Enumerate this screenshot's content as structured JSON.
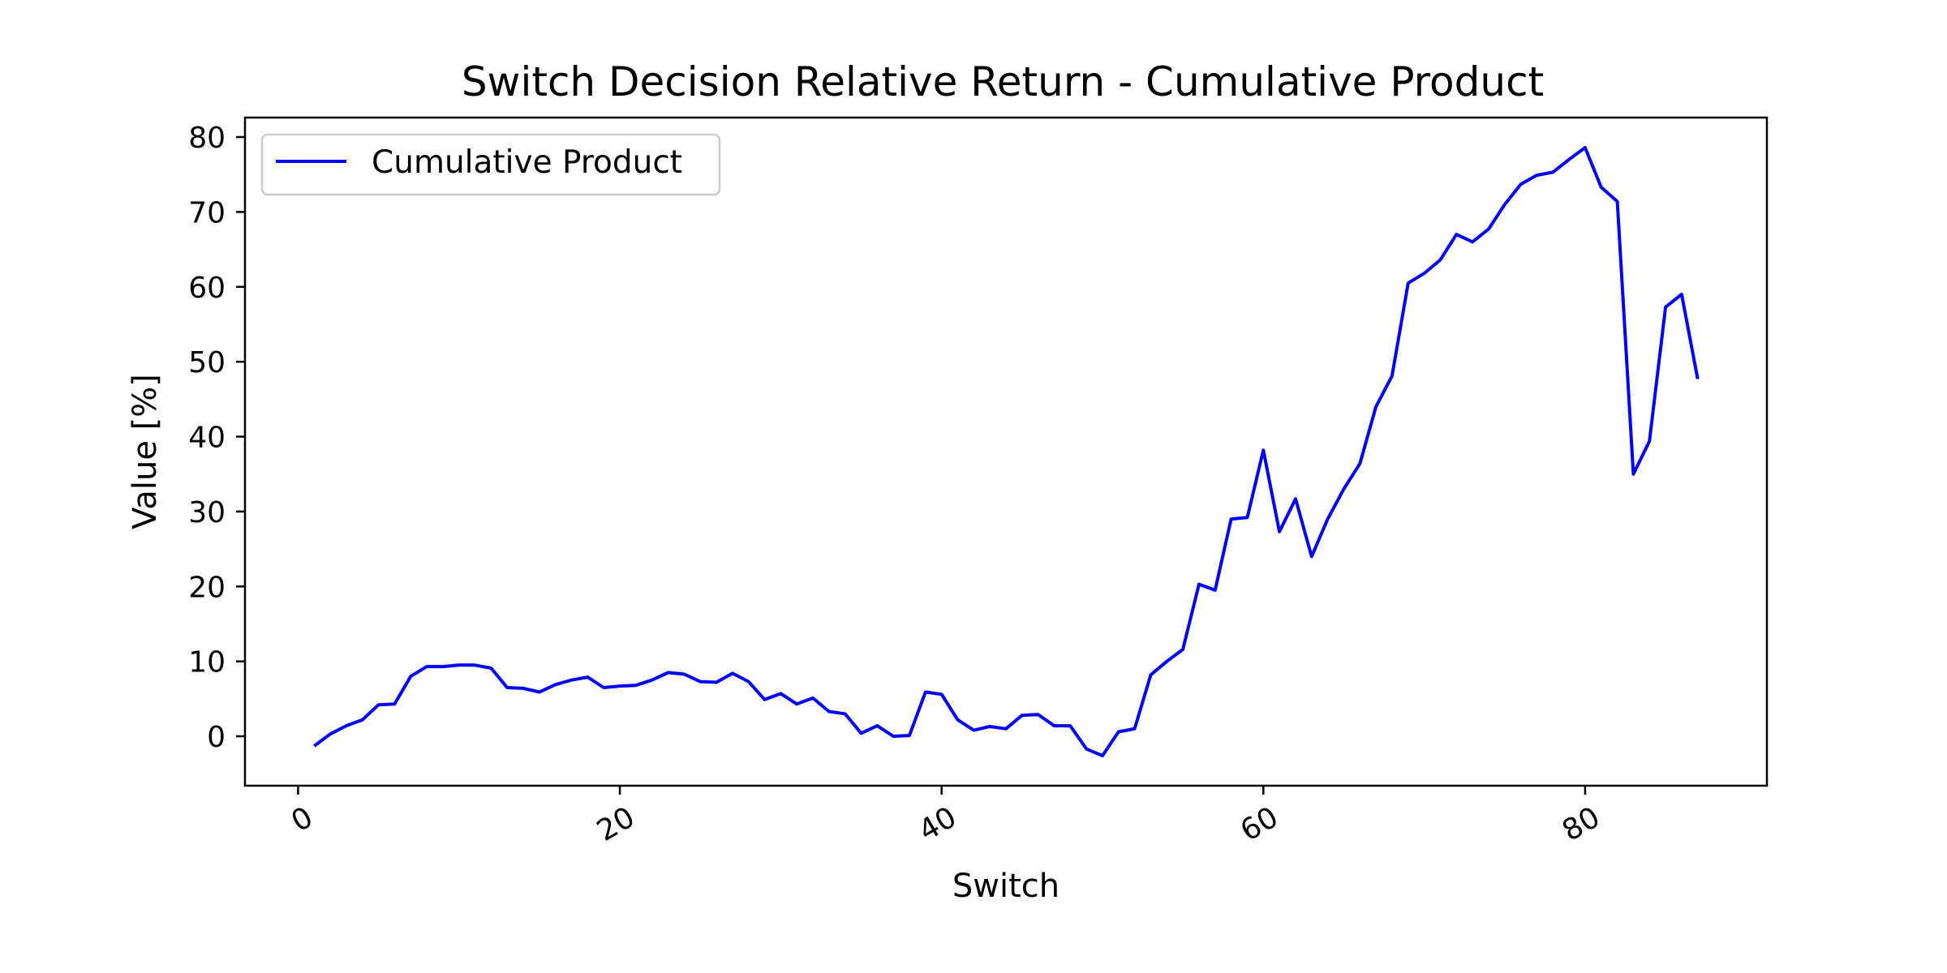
{
  "chart_data": {
    "type": "line",
    "title": "Switch Decision Relative Return - Cumulative Product",
    "xlabel": "Switch",
    "ylabel": "Value [%]",
    "xlim": [
      -3.3,
      91.3
    ],
    "ylim": [
      -6.6,
      82.6
    ],
    "xticks": [
      0,
      20,
      40,
      60,
      80
    ],
    "yticks": [
      0,
      10,
      20,
      30,
      40,
      50,
      60,
      70,
      80
    ],
    "grid": false,
    "legend_position": "top-left",
    "series": [
      {
        "name": "Cumulative Product",
        "color": "#0000ff",
        "x": [
          1,
          2,
          3,
          4,
          5,
          6,
          7,
          8,
          9,
          10,
          11,
          12,
          13,
          14,
          15,
          16,
          17,
          18,
          19,
          20,
          21,
          22,
          23,
          24,
          25,
          26,
          27,
          28,
          29,
          30,
          31,
          32,
          33,
          34,
          35,
          36,
          37,
          38,
          39,
          40,
          41,
          42,
          43,
          44,
          45,
          46,
          47,
          48,
          49,
          50,
          51,
          52,
          53,
          54,
          55,
          56,
          57,
          58,
          59,
          60,
          61,
          62,
          63,
          64,
          65,
          66,
          67,
          68,
          69,
          70,
          71,
          72,
          73,
          74,
          75,
          76,
          77,
          78,
          79,
          80,
          81,
          82,
          83,
          84,
          85,
          86,
          87
        ],
        "y": [
          -1.3,
          0.3,
          1.4,
          2.2,
          4.2,
          4.3,
          8.0,
          9.3,
          9.3,
          9.5,
          9.5,
          9.1,
          6.5,
          6.4,
          5.9,
          6.9,
          7.5,
          7.9,
          6.5,
          6.7,
          6.8,
          7.5,
          8.5,
          8.3,
          7.3,
          7.2,
          8.4,
          7.3,
          4.9,
          5.7,
          4.3,
          5.1,
          3.3,
          3.0,
          0.4,
          1.4,
          0.0,
          0.1,
          5.9,
          5.6,
          2.2,
          0.8,
          1.3,
          1.0,
          2.8,
          2.9,
          1.4,
          1.4,
          -1.7,
          -2.6,
          0.6,
          1.0,
          8.2,
          10.0,
          11.6,
          20.3,
          19.5,
          29.0,
          29.2,
          38.2,
          27.3,
          31.7,
          24.0,
          29.0,
          33.0,
          36.4,
          44.0,
          48.1,
          60.5,
          61.8,
          63.6,
          67.0,
          66.0,
          67.7,
          71.0,
          73.7,
          74.9,
          75.3,
          77.0,
          78.6,
          73.3,
          71.4,
          35.0,
          39.4,
          57.3,
          59.0,
          47.7
        ]
      }
    ]
  }
}
